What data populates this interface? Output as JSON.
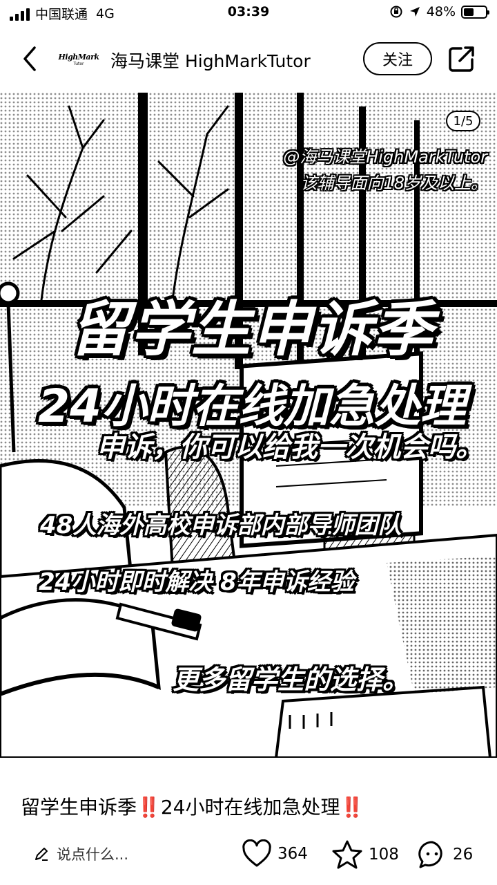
{
  "status_bar": {
    "carrier": "中国联通",
    "network": "4G",
    "time": "03:39",
    "battery": "48%",
    "battery_level": 0.48
  },
  "header": {
    "logo_main": "HighMark",
    "logo_sub": "Tutor",
    "account_name": "海马课堂 HighMarkTutor",
    "follow_label": "关注"
  },
  "post": {
    "page_counter": "1/5",
    "watermark_line1": "@海马课堂HighMarkTutor",
    "watermark_line2": "该辅导面向18岁及以上。",
    "headline1": "留学生申诉季",
    "headline2": "24小时在线加急处理",
    "sub1": "申诉，你可以给我一次机会吗。",
    "sub2": "48人海外高校申诉部内部导师团队",
    "sub3": "24小时即时解决  8年申诉经验",
    "sub4": "更多留学生的选择。",
    "title": "留学生申诉季‼️24小时在线加急处理‼️"
  },
  "carousel": {
    "total": 5,
    "active": 1
  },
  "bottom_bar": {
    "comment_placeholder": "说点什么...",
    "likes": "364",
    "collects": "108",
    "comments": "26"
  },
  "colors": {
    "text": "#000000",
    "background": "#ffffff"
  }
}
